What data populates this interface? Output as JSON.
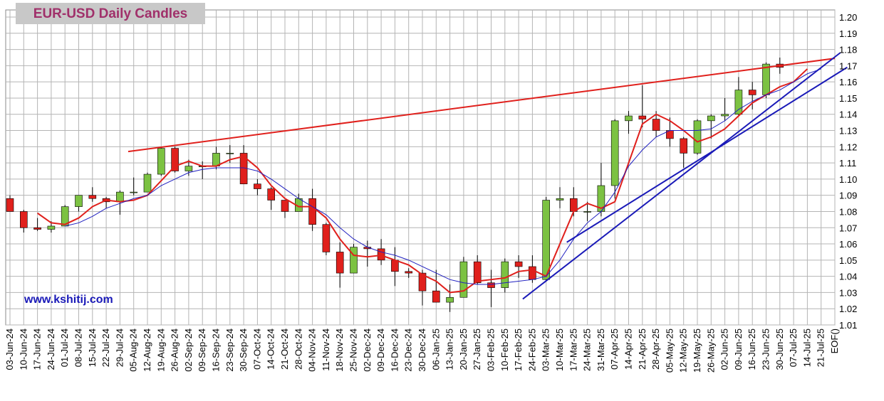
{
  "chart_data": {
    "type": "candlestick",
    "title": "EUR-USD Daily  Candles",
    "watermark": "www.kshitij.com",
    "categories": [
      "03-Jun-24",
      "10-Jun-24",
      "17-Jun-24",
      "24-Jun-24",
      "01-Jul-24",
      "08-Jul-24",
      "15-Jul-24",
      "22-Jul-24",
      "29-Jul-24",
      "05-Aug-24",
      "12-Aug-24",
      "19-Aug-24",
      "26-Aug-24",
      "02-Sep-24",
      "09-Sep-24",
      "16-Sep-24",
      "23-Sep-24",
      "30-Sep-24",
      "07-Oct-24",
      "14-Oct-24",
      "21-Oct-24",
      "28-Oct-24",
      "04-Nov-24",
      "11-Nov-24",
      "18-Nov-24",
      "25-Nov-24",
      "02-Dec-24",
      "09-Dec-24",
      "16-Dec-24",
      "23-Dec-24",
      "30-Dec-24",
      "06-Jan-25",
      "13-Jan-25",
      "20-Jan-25",
      "27-Jan-25",
      "03-Feb-25",
      "10-Feb-25",
      "17-Feb-25",
      "24-Feb-25",
      "03-Mar-25",
      "10-Mar-25",
      "17-Mar-25",
      "24-Mar-25",
      "31-Mar-25",
      "07-Apr-25",
      "14-Apr-25",
      "21-Apr-25",
      "28-Apr-25",
      "05-May-25",
      "12-May-25",
      "19-May-25",
      "26-May-25",
      "02-Jun-25",
      "09-Jun-25",
      "16-Jun-25",
      "23-Jun-25",
      "30-Jun-25",
      "07-Jul-25",
      "14-Jul-25",
      "21-Jul-25",
      "EOF()"
    ],
    "open": [
      1.088,
      1.08,
      1.07,
      1.069,
      1.071,
      1.083,
      1.09,
      1.088,
      1.086,
      1.092,
      1.092,
      1.103,
      1.119,
      1.105,
      1.108,
      1.108,
      1.116,
      1.116,
      1.097,
      1.094,
      1.087,
      1.08,
      1.088,
      1.072,
      1.055,
      1.042,
      1.058,
      1.057,
      1.05,
      1.043,
      1.042,
      1.031,
      1.024,
      1.027,
      1.049,
      1.036,
      1.033,
      1.049,
      1.046,
      1.038,
      1.087,
      1.088,
      1.08,
      1.08,
      1.096,
      1.136,
      1.139,
      1.137,
      1.13,
      1.125,
      1.116,
      1.136,
      1.139,
      1.14,
      1.155,
      1.152,
      1.171,
      null,
      null,
      null,
      null
    ],
    "high": [
      1.09,
      1.081,
      1.076,
      1.074,
      1.084,
      1.09,
      1.095,
      1.089,
      1.093,
      1.101,
      1.104,
      1.12,
      1.12,
      1.112,
      1.111,
      1.12,
      1.121,
      1.121,
      1.1,
      1.095,
      1.087,
      1.091,
      1.094,
      1.073,
      1.061,
      1.06,
      1.062,
      1.063,
      1.058,
      1.045,
      1.044,
      1.044,
      1.035,
      1.052,
      1.053,
      1.044,
      1.051,
      1.053,
      1.053,
      1.089,
      1.095,
      1.095,
      1.086,
      1.11,
      1.137,
      1.142,
      1.158,
      1.142,
      1.138,
      1.126,
      1.137,
      1.14,
      1.15,
      1.163,
      1.16,
      1.172,
      1.175,
      null,
      null,
      null,
      null
    ],
    "low": [
      1.08,
      1.067,
      1.068,
      1.067,
      1.071,
      1.08,
      1.086,
      1.082,
      1.078,
      1.09,
      1.092,
      1.102,
      1.104,
      1.102,
      1.1,
      1.106,
      1.11,
      1.097,
      1.09,
      1.081,
      1.076,
      1.08,
      1.068,
      1.053,
      1.033,
      1.042,
      1.046,
      1.047,
      1.034,
      1.039,
      1.022,
      1.024,
      1.018,
      1.027,
      1.035,
      1.021,
      1.03,
      1.039,
      1.036,
      1.037,
      1.082,
      1.077,
      1.074,
      1.077,
      1.088,
      1.128,
      1.132,
      1.126,
      1.12,
      1.107,
      1.115,
      1.125,
      1.136,
      1.139,
      1.143,
      1.15,
      1.165,
      null,
      null,
      null,
      null
    ],
    "close": [
      1.08,
      1.07,
      1.069,
      1.071,
      1.083,
      1.09,
      1.088,
      1.086,
      1.092,
      1.092,
      1.103,
      1.119,
      1.105,
      1.108,
      1.108,
      1.116,
      1.116,
      1.097,
      1.094,
      1.087,
      1.08,
      1.088,
      1.072,
      1.055,
      1.042,
      1.058,
      1.057,
      1.05,
      1.043,
      1.042,
      1.031,
      1.024,
      1.027,
      1.049,
      1.036,
      1.033,
      1.049,
      1.046,
      1.038,
      1.087,
      1.088,
      1.08,
      1.08,
      1.096,
      1.136,
      1.139,
      1.137,
      1.13,
      1.125,
      1.116,
      1.136,
      1.139,
      1.14,
      1.155,
      1.152,
      1.171,
      1.169,
      null,
      null,
      null,
      null
    ],
    "up_color": "#7cc242",
    "down_color": "#e0201c",
    "series": [
      {
        "color": "#e0201c",
        "values": [
          null,
          null,
          1.079,
          1.073,
          1.072,
          1.076,
          1.083,
          1.087,
          1.086,
          1.087,
          1.09,
          1.099,
          1.108,
          1.111,
          1.108,
          1.108,
          1.112,
          1.114,
          1.107,
          1.096,
          1.088,
          1.083,
          1.083,
          1.076,
          1.063,
          1.053,
          1.052,
          1.053,
          1.05,
          1.047,
          1.041,
          1.037,
          1.03,
          1.031,
          1.037,
          1.038,
          1.039,
          1.043,
          1.044,
          1.04,
          1.06,
          1.08,
          1.085,
          1.082,
          1.086,
          1.11,
          1.134,
          1.14,
          1.136,
          1.13,
          1.123,
          1.126,
          1.131,
          1.139,
          1.147,
          1.152,
          1.157,
          1.16,
          1.168,
          null,
          null
        ]
      },
      {
        "color": "#2020c0",
        "values": [
          null,
          null,
          null,
          null,
          1.071,
          1.073,
          1.077,
          1.082,
          1.085,
          1.088,
          1.09,
          1.096,
          1.1,
          1.104,
          1.106,
          1.107,
          1.107,
          1.107,
          1.105,
          1.1,
          1.094,
          1.088,
          1.083,
          1.078,
          1.07,
          1.063,
          1.058,
          1.055,
          1.053,
          1.05,
          1.046,
          1.042,
          1.038,
          1.036,
          1.035,
          1.035,
          1.036,
          1.037,
          1.038,
          1.04,
          1.05,
          1.063,
          1.073,
          1.08,
          1.092,
          1.108,
          1.118,
          1.126,
          1.13,
          1.13,
          1.13,
          1.131,
          1.136,
          1.143,
          1.148,
          1.152,
          1.155,
          1.16,
          1.165,
          1.168,
          null
        ]
      }
    ],
    "trendlines": [
      {
        "color": "#e0201c",
        "x": [
          8.6,
          60.0
        ],
        "y": [
          1.117,
          1.1745
        ]
      },
      {
        "color": "#1a1ab8",
        "x": [
          37.3,
          60.4
        ],
        "y": [
          1.026,
          1.178
        ]
      },
      {
        "color": "#1a1ab8",
        "x": [
          40.5,
          60.9
        ],
        "y": [
          1.061,
          1.169
        ]
      }
    ],
    "ylim": [
      1.01,
      1.2
    ],
    "yticks": [
      1.01,
      1.02,
      1.03,
      1.04,
      1.05,
      1.06,
      1.07,
      1.08,
      1.09,
      {
        "value": 1.1,
        "label": "1.10"
      },
      1.11,
      1.12,
      1.13,
      1.14,
      1.15,
      1.16,
      1.17,
      1.18,
      1.19,
      {
        "value": 1.2,
        "label": "1.20"
      }
    ],
    "y_axis_side": "right",
    "grid": true
  }
}
